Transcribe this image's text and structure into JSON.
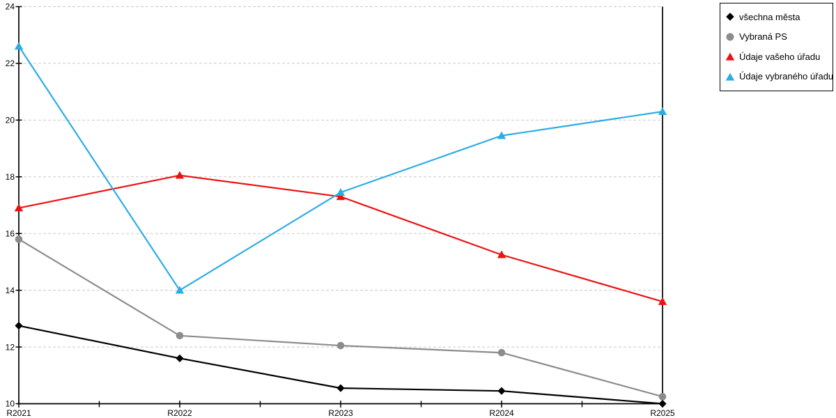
{
  "chart_data": {
    "type": "line",
    "title": "",
    "xlabel": "",
    "ylabel": "",
    "categories": [
      "R2021",
      "R2022",
      "R2023",
      "R2024",
      "R2025"
    ],
    "series": [
      {
        "name": "všechna města",
        "marker": "diamond",
        "color": "#000000",
        "values": [
          12.75,
          11.6,
          10.55,
          10.45,
          10.0
        ]
      },
      {
        "name": "Vybraná PS",
        "marker": "circle",
        "color": "#8c8c8c",
        "values": [
          15.8,
          12.4,
          12.05,
          11.8,
          10.25
        ]
      },
      {
        "name": "Údaje vašeho úřadu",
        "marker": "triangle",
        "color": "#ee1111",
        "values": [
          16.9,
          18.05,
          17.3,
          15.25,
          13.6
        ]
      },
      {
        "name": "Údaje vybraného úřadu",
        "marker": "triangle",
        "color": "#2bace6",
        "values": [
          22.6,
          14.0,
          17.45,
          19.45,
          20.3
        ]
      }
    ],
    "ylim": [
      10,
      24
    ],
    "y_ticks": [
      10,
      12,
      14,
      16,
      18,
      20,
      22,
      24
    ],
    "x_minor_ticks": "midpoints",
    "grid": "horizontal-dashed",
    "grid_color": "#c8c8c8",
    "axis_color": "#000000",
    "background": "#ffffff",
    "legend_position": "top-right",
    "legend_border_color": "#000000"
  }
}
